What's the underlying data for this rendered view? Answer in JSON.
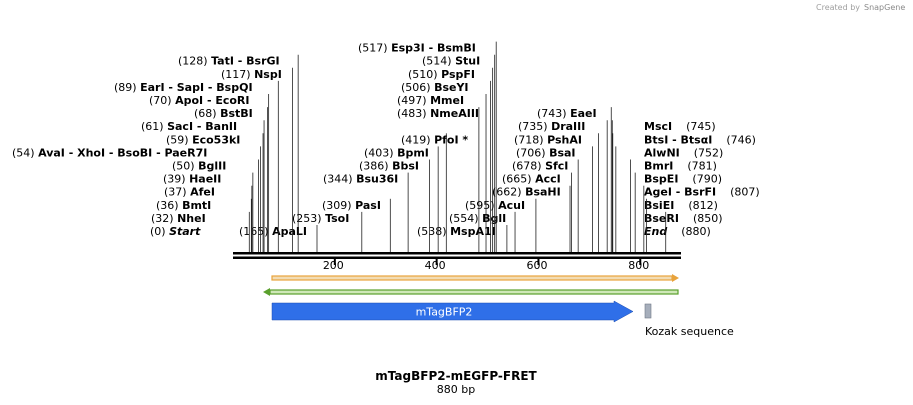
{
  "watermark": {
    "prefix": "Created by",
    "brand": "SnapGene"
  },
  "sequence": {
    "name": "mTagBFP2-mEGFP-FRET",
    "length_label": "880 bp",
    "length": 880
  },
  "ruler": {
    "ticks": [
      200,
      400,
      600,
      800
    ]
  },
  "sites": [
    {
      "row": 0,
      "parts": [
        {
          "pos": "(0)",
          "names": "Start",
          "italic": true
        }
      ],
      "lines": []
    },
    {
      "row": 0,
      "parts": [
        {
          "pos": "(165)",
          "names": "ApaLI"
        }
      ],
      "lines": [
        165
      ]
    },
    {
      "row": 0,
      "parts": [
        {
          "pos": "(538)",
          "names": "MspA1I"
        }
      ],
      "lines": [
        538
      ]
    },
    {
      "row": 0,
      "parts": [
        {
          "pos": "",
          "names": "End",
          "italic": true
        },
        {
          "pos": "(880)",
          "names": ""
        }
      ],
      "lines": []
    },
    {
      "row": 1,
      "parts": [
        {
          "pos": "(32)",
          "names": "NheI"
        }
      ],
      "lines": [
        32
      ]
    },
    {
      "row": 1,
      "parts": [
        {
          "pos": "(253)",
          "names": "TsoI"
        }
      ],
      "lines": [
        253
      ]
    },
    {
      "row": 1,
      "parts": [
        {
          "pos": "(554)",
          "names": "BglI"
        }
      ],
      "lines": [
        554
      ]
    },
    {
      "row": 1,
      "parts": [
        {
          "pos": "",
          "names": "BseRI"
        },
        {
          "pos": "(850)",
          "names": ""
        }
      ],
      "lines": [
        850
      ]
    },
    {
      "row": 2,
      "parts": [
        {
          "pos": "(36)",
          "names": "BmtI"
        }
      ],
      "lines": [
        36
      ]
    },
    {
      "row": 2,
      "parts": [
        {
          "pos": "(309)",
          "names": "PasI"
        }
      ],
      "lines": [
        309
      ]
    },
    {
      "row": 2,
      "parts": [
        {
          "pos": "(595)",
          "names": "AcuI"
        }
      ],
      "lines": [
        595
      ]
    },
    {
      "row": 2,
      "parts": [
        {
          "pos": "",
          "names": "BsiEI"
        },
        {
          "pos": "(812)",
          "names": ""
        }
      ],
      "lines": [
        812
      ]
    },
    {
      "row": 3,
      "parts": [
        {
          "pos": "(37)",
          "names": "AfeI"
        }
      ],
      "lines": [
        37
      ]
    },
    {
      "row": 3,
      "parts": [
        {
          "pos": "(662)",
          "names": "BsaHI"
        }
      ],
      "lines": [
        662
      ]
    },
    {
      "row": 3,
      "parts": [
        {
          "pos": "",
          "names": "AgeI   - BsrFI"
        },
        {
          "pos": "(807)",
          "names": ""
        }
      ],
      "lines": [
        807
      ]
    },
    {
      "row": 4,
      "parts": [
        {
          "pos": "(39)",
          "names": "HaeII"
        }
      ],
      "lines": [
        39
      ]
    },
    {
      "row": 4,
      "parts": [
        {
          "pos": "(344)",
          "names": "Bsu36I"
        }
      ],
      "lines": [
        344
      ]
    },
    {
      "row": 4,
      "parts": [
        {
          "pos": "(665)",
          "names": "AccI"
        }
      ],
      "lines": [
        665
      ]
    },
    {
      "row": 4,
      "parts": [
        {
          "pos": "",
          "names": "BspEI"
        },
        {
          "pos": "(790)",
          "names": ""
        }
      ],
      "lines": [
        790
      ]
    },
    {
      "row": 5,
      "parts": [
        {
          "pos": "(50)",
          "names": "BglII"
        }
      ],
      "lines": [
        50
      ]
    },
    {
      "row": 5,
      "parts": [
        {
          "pos": "(386)",
          "names": "BbsI"
        }
      ],
      "lines": [
        386
      ]
    },
    {
      "row": 5,
      "parts": [
        {
          "pos": "(678)",
          "names": "SfcI"
        }
      ],
      "lines": [
        678
      ]
    },
    {
      "row": 5,
      "parts": [
        {
          "pos": "",
          "names": "BmrI"
        },
        {
          "pos": "(781)",
          "names": ""
        }
      ],
      "lines": [
        781
      ]
    },
    {
      "row": 6,
      "parts": [
        {
          "pos": "(54)",
          "names": "AvaI   - XhoI   - BsoBI   - PaeR7I"
        }
      ],
      "lines": [
        54
      ]
    },
    {
      "row": 6,
      "parts": [
        {
          "pos": "(403)",
          "names": "BpmI"
        }
      ],
      "lines": [
        403
      ]
    },
    {
      "row": 6,
      "parts": [
        {
          "pos": "(706)",
          "names": "BsaI"
        }
      ],
      "lines": [
        706
      ]
    },
    {
      "row": 6,
      "parts": [
        {
          "pos": "",
          "names": "AlwNI"
        },
        {
          "pos": "(752)",
          "names": ""
        }
      ],
      "lines": [
        752
      ]
    },
    {
      "row": 7,
      "parts": [
        {
          "pos": "(59)",
          "names": "Eco53kI"
        }
      ],
      "lines": [
        59
      ]
    },
    {
      "row": 7,
      "parts": [
        {
          "pos": "(419)",
          "names": "PfoI *"
        }
      ],
      "lines": [
        419
      ]
    },
    {
      "row": 7,
      "parts": [
        {
          "pos": "(718)",
          "names": "PshAI"
        }
      ],
      "lines": [
        718
      ]
    },
    {
      "row": 7,
      "parts": [
        {
          "pos": "",
          "names": "BtsI   - BtsαI"
        },
        {
          "pos": "(746)",
          "names": ""
        }
      ],
      "lines": [
        746
      ]
    },
    {
      "row": 8,
      "parts": [
        {
          "pos": "(61)",
          "names": "SacI   - BanII"
        }
      ],
      "lines": [
        61
      ]
    },
    {
      "row": 8,
      "parts": [
        {
          "pos": "(735)",
          "names": "DraIII"
        }
      ],
      "lines": [
        735
      ]
    },
    {
      "row": 8,
      "parts": [
        {
          "pos": "",
          "names": "MscI"
        },
        {
          "pos": "(745)",
          "names": ""
        }
      ],
      "lines": [
        745
      ]
    },
    {
      "row": 9,
      "parts": [
        {
          "pos": "(68)",
          "names": "BstBI"
        }
      ],
      "lines": [
        68
      ]
    },
    {
      "row": 9,
      "parts": [
        {
          "pos": "(483)",
          "names": "NmeAIII"
        }
      ],
      "lines": [
        483
      ]
    },
    {
      "row": 9,
      "parts": [
        {
          "pos": "(743)",
          "names": "EaeI"
        }
      ],
      "lines": [
        743
      ]
    },
    {
      "row": 10,
      "parts": [
        {
          "pos": "(70)",
          "names": "ApoI   - EcoRI"
        }
      ],
      "lines": [
        70
      ]
    },
    {
      "row": 10,
      "parts": [
        {
          "pos": "(497)",
          "names": "MmeI"
        }
      ],
      "lines": [
        497
      ]
    },
    {
      "row": 11,
      "parts": [
        {
          "pos": "(89)",
          "names": "EarI   - SapI   - BspQI"
        }
      ],
      "lines": [
        89
      ]
    },
    {
      "row": 11,
      "parts": [
        {
          "pos": "(506)",
          "names": "BseYI"
        }
      ],
      "lines": [
        506
      ]
    },
    {
      "row": 12,
      "parts": [
        {
          "pos": "(117)",
          "names": "NspI"
        }
      ],
      "lines": [
        117
      ]
    },
    {
      "row": 12,
      "parts": [
        {
          "pos": "(510)",
          "names": "PspFI"
        }
      ],
      "lines": [
        510
      ]
    },
    {
      "row": 13,
      "parts": [
        {
          "pos": "(128)",
          "names": "TatI   - BsrGI"
        }
      ],
      "lines": [
        128
      ]
    },
    {
      "row": 13,
      "parts": [
        {
          "pos": "(514)",
          "names": "StuI"
        }
      ],
      "lines": [
        514
      ]
    },
    {
      "row": 14,
      "parts": [
        {
          "pos": "(517)",
          "names": "Esp3I   - BsmBI"
        }
      ],
      "lines": [
        517
      ]
    }
  ],
  "features": [
    {
      "name": "orange-primer-bar",
      "start": 77,
      "end": 880,
      "color": "#e8a33c",
      "fill": "#f2dcb4"
    },
    {
      "name": "green-primer-bar",
      "start": 60,
      "end": 880,
      "color": "#5aa02c",
      "fill": "#cfe8b8"
    },
    {
      "name": "mTagBFP2",
      "label": "mTagBFP2",
      "start": 77,
      "end": 790,
      "color": "#2f6fe8"
    },
    {
      "name": "Kozak sequence",
      "label": "Kozak sequence",
      "start": 812,
      "end": 824,
      "color": "#9aa4b4"
    }
  ],
  "colors": {
    "line": "#000000",
    "bfp": "#2f6fe8",
    "kozak": "#a6aebb",
    "orange": "#e8a33c",
    "green": "#5aa02c"
  }
}
